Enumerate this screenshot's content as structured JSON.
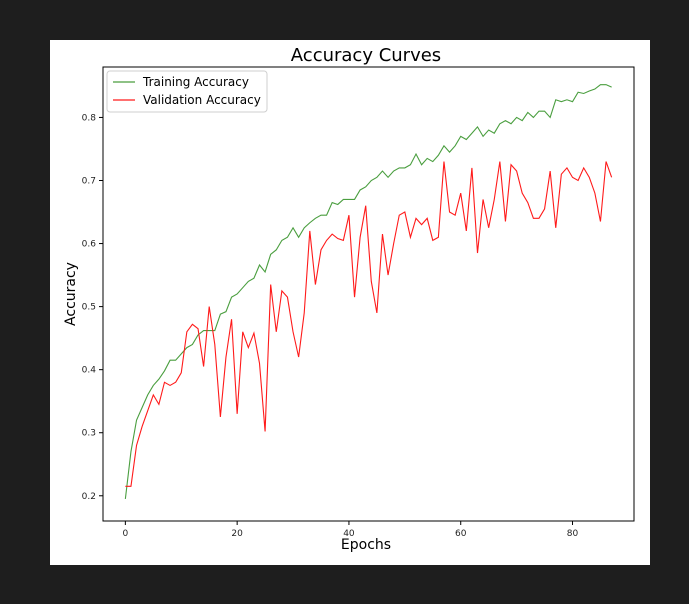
{
  "chart_data": {
    "type": "line",
    "title": "Accuracy Curves",
    "xlabel": "Epochs",
    "ylabel": "Accuracy",
    "xlim": [
      -4,
      91
    ],
    "ylim": [
      0.16,
      0.88
    ],
    "xticks": [
      0,
      20,
      40,
      60,
      80
    ],
    "yticks": [
      0.2,
      0.3,
      0.4,
      0.5,
      0.6,
      0.7,
      0.8
    ],
    "legend_position": "top-left",
    "grid": false,
    "series": [
      {
        "name": "Training Accuracy",
        "color": "#4a9e3f",
        "x": [
          0,
          1,
          2,
          3,
          4,
          5,
          6,
          7,
          8,
          9,
          10,
          11,
          12,
          13,
          14,
          15,
          16,
          17,
          18,
          19,
          20,
          21,
          22,
          23,
          24,
          25,
          26,
          27,
          28,
          29,
          30,
          31,
          32,
          33,
          34,
          35,
          36,
          37,
          38,
          39,
          40,
          41,
          42,
          43,
          44,
          45,
          46,
          47,
          48,
          49,
          50,
          51,
          52,
          53,
          54,
          55,
          56,
          57,
          58,
          59,
          60,
          61,
          62,
          63,
          64,
          65,
          66,
          67,
          68,
          69,
          70,
          71,
          72,
          73,
          74,
          75,
          76,
          77,
          78,
          79,
          80,
          81,
          82,
          83,
          84,
          85,
          86,
          87
        ],
        "values": [
          0.195,
          0.27,
          0.32,
          0.34,
          0.36,
          0.375,
          0.385,
          0.398,
          0.415,
          0.415,
          0.425,
          0.435,
          0.44,
          0.455,
          0.462,
          0.462,
          0.462,
          0.488,
          0.492,
          0.515,
          0.52,
          0.53,
          0.54,
          0.545,
          0.566,
          0.555,
          0.583,
          0.59,
          0.605,
          0.61,
          0.625,
          0.61,
          0.625,
          0.633,
          0.64,
          0.645,
          0.645,
          0.665,
          0.662,
          0.67,
          0.67,
          0.67,
          0.685,
          0.69,
          0.7,
          0.705,
          0.715,
          0.705,
          0.715,
          0.72,
          0.72,
          0.725,
          0.742,
          0.725,
          0.735,
          0.73,
          0.74,
          0.755,
          0.745,
          0.755,
          0.77,
          0.765,
          0.775,
          0.785,
          0.77,
          0.78,
          0.775,
          0.79,
          0.795,
          0.79,
          0.8,
          0.795,
          0.808,
          0.8,
          0.81,
          0.81,
          0.8,
          0.828,
          0.825,
          0.828,
          0.825,
          0.84,
          0.838,
          0.842,
          0.845,
          0.852,
          0.852,
          0.848
        ]
      },
      {
        "name": "Validation Accuracy",
        "color": "#ff1a1a",
        "x": [
          0,
          1,
          2,
          3,
          4,
          5,
          6,
          7,
          8,
          9,
          10,
          11,
          12,
          13,
          14,
          15,
          16,
          17,
          18,
          19,
          20,
          21,
          22,
          23,
          24,
          25,
          26,
          27,
          28,
          29,
          30,
          31,
          32,
          33,
          34,
          35,
          36,
          37,
          38,
          39,
          40,
          41,
          42,
          43,
          44,
          45,
          46,
          47,
          48,
          49,
          50,
          51,
          52,
          53,
          54,
          55,
          56,
          57,
          58,
          59,
          60,
          61,
          62,
          63,
          64,
          65,
          66,
          67,
          68,
          69,
          70,
          71,
          72,
          73,
          74,
          75,
          76,
          77,
          78,
          79,
          80,
          81,
          82,
          83,
          84,
          85,
          86,
          87
        ],
        "values": [
          0.215,
          0.215,
          0.28,
          0.31,
          0.335,
          0.36,
          0.345,
          0.38,
          0.375,
          0.38,
          0.395,
          0.46,
          0.472,
          0.465,
          0.405,
          0.5,
          0.44,
          0.325,
          0.42,
          0.48,
          0.33,
          0.46,
          0.435,
          0.458,
          0.41,
          0.302,
          0.535,
          0.46,
          0.525,
          0.515,
          0.46,
          0.42,
          0.49,
          0.62,
          0.535,
          0.59,
          0.605,
          0.615,
          0.608,
          0.605,
          0.645,
          0.515,
          0.61,
          0.66,
          0.54,
          0.49,
          0.615,
          0.55,
          0.6,
          0.645,
          0.65,
          0.61,
          0.64,
          0.63,
          0.64,
          0.605,
          0.61,
          0.73,
          0.65,
          0.645,
          0.68,
          0.62,
          0.72,
          0.585,
          0.67,
          0.625,
          0.67,
          0.73,
          0.635,
          0.725,
          0.715,
          0.68,
          0.665,
          0.64,
          0.64,
          0.655,
          0.715,
          0.625,
          0.71,
          0.72,
          0.705,
          0.7,
          0.72,
          0.705,
          0.68,
          0.635,
          0.73,
          0.705
        ]
      }
    ]
  }
}
